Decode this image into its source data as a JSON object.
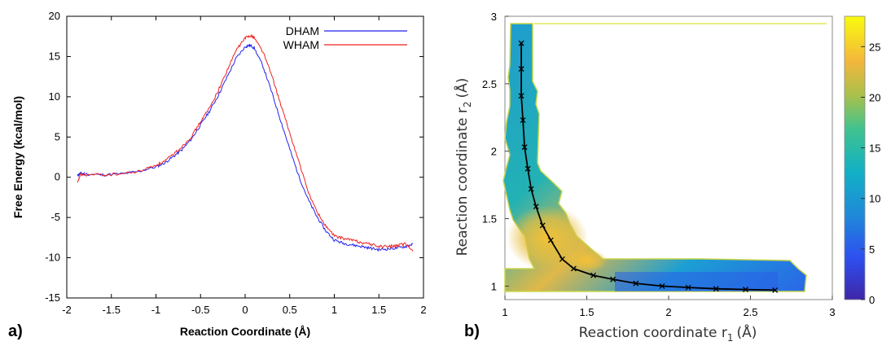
{
  "panels": {
    "a": "a)",
    "b": "b)"
  },
  "chart_data": [
    {
      "type": "line",
      "xlabel": "Reaction Coordinate (Å)",
      "ylabel": "Free Energy (kcal/mol)",
      "xlim": [
        -2,
        2
      ],
      "ylim": [
        -15,
        20
      ],
      "x_ticks": [
        "-2",
        "-1.5",
        "-1",
        "-0.5",
        "0",
        "0.5",
        "1",
        "1.5",
        "2"
      ],
      "y_ticks": [
        "-15",
        "-10",
        "-5",
        "0",
        "5",
        "10",
        "15",
        "20"
      ],
      "legend_position": "top-right",
      "grid": false,
      "series": [
        {
          "name": "DHAM",
          "color": "#2222ee",
          "x": [
            -1.88,
            -1.85,
            -1.8,
            -1.6,
            -1.4,
            -1.2,
            -1.0,
            -0.9,
            -0.8,
            -0.7,
            -0.6,
            -0.5,
            -0.4,
            -0.3,
            -0.2,
            -0.1,
            0.0,
            0.05,
            0.1,
            0.2,
            0.3,
            0.4,
            0.5,
            0.6,
            0.7,
            0.8,
            0.9,
            1.0,
            1.1,
            1.2,
            1.3,
            1.4,
            1.5,
            1.6,
            1.7,
            1.8,
            1.88
          ],
          "y": [
            0.2,
            0.5,
            0.4,
            0.3,
            0.4,
            0.7,
            1.3,
            1.8,
            2.6,
            3.5,
            4.8,
            6.5,
            8.2,
            10.2,
            12.5,
            14.8,
            16.2,
            16.4,
            16.1,
            13.8,
            10.5,
            7.0,
            3.5,
            0.2,
            -2.6,
            -4.8,
            -6.6,
            -7.8,
            -8.2,
            -8.4,
            -8.6,
            -8.8,
            -9.0,
            -8.9,
            -8.8,
            -8.6,
            -8.3
          ]
        },
        {
          "name": "WHAM",
          "color": "#ee2222",
          "x": [
            -1.88,
            -1.85,
            -1.8,
            -1.6,
            -1.4,
            -1.2,
            -1.0,
            -0.9,
            -0.8,
            -0.7,
            -0.6,
            -0.5,
            -0.4,
            -0.3,
            -0.2,
            -0.1,
            0.0,
            0.05,
            0.1,
            0.2,
            0.3,
            0.4,
            0.5,
            0.6,
            0.7,
            0.8,
            0.9,
            1.0,
            1.1,
            1.2,
            1.3,
            1.4,
            1.5,
            1.6,
            1.7,
            1.8,
            1.88
          ],
          "y": [
            -0.8,
            0.3,
            0.3,
            0.3,
            0.4,
            0.7,
            1.5,
            2.0,
            2.9,
            3.9,
            5.1,
            6.9,
            8.6,
            10.8,
            13.3,
            15.8,
            17.3,
            17.6,
            17.4,
            15.6,
            12.6,
            9.0,
            5.5,
            2.0,
            -1.6,
            -4.2,
            -6.0,
            -7.3,
            -7.6,
            -7.8,
            -8.1,
            -8.3,
            -8.6,
            -8.6,
            -8.5,
            -8.3,
            -9.2
          ]
        }
      ]
    },
    {
      "type": "heatmap",
      "xlabel": "Reaction coordinate r",
      "xlabel_sub": "1",
      "xlabel_unit": "(Å)",
      "ylabel": "Reaction coordinate r",
      "ylabel_sub": "2",
      "ylabel_unit": "(Å)",
      "xlim": [
        1,
        3
      ],
      "ylim": [
        0.9,
        3.0
      ],
      "x_ticks": [
        "1",
        "1.5",
        "2",
        "2.5",
        "3"
      ],
      "y_ticks": [
        "1",
        "1.5",
        "2",
        "2.5",
        "3"
      ],
      "colorbar_ticks": [
        "0",
        "5",
        "10",
        "15",
        "20",
        "25"
      ],
      "colorbar_range": [
        0,
        28
      ],
      "colormap": "parula",
      "path": {
        "color": "#000000",
        "r1": [
          1.1,
          1.1,
          1.1,
          1.11,
          1.12,
          1.14,
          1.16,
          1.19,
          1.23,
          1.28,
          1.35,
          1.42,
          1.54,
          1.66,
          1.8,
          1.96,
          2.12,
          2.29,
          2.47,
          2.65
        ],
        "r2": [
          2.8,
          2.61,
          2.41,
          2.23,
          2.03,
          1.87,
          1.72,
          1.59,
          1.45,
          1.34,
          1.2,
          1.13,
          1.08,
          1.05,
          1.02,
          1.0,
          0.99,
          0.98,
          0.975,
          0.97
        ]
      }
    }
  ]
}
